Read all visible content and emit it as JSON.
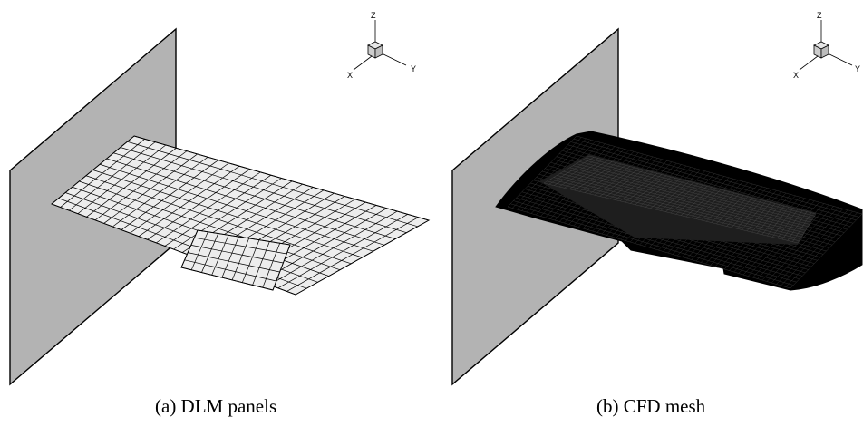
{
  "figures": [
    {
      "id": "a",
      "caption": "(a)  DLM panels",
      "axis_labels": {
        "z": "Z",
        "x": "X",
        "y": "Y"
      }
    },
    {
      "id": "b",
      "caption": "(b)  CFD mesh",
      "axis_labels": {
        "z": "Z",
        "x": "X",
        "y": "Y"
      }
    }
  ],
  "colors": {
    "plane": "#b3b3b3",
    "panel_fill": "#ededed",
    "mesh": "#000000",
    "line": "#000000",
    "triad_box": "#d9d9d9"
  }
}
